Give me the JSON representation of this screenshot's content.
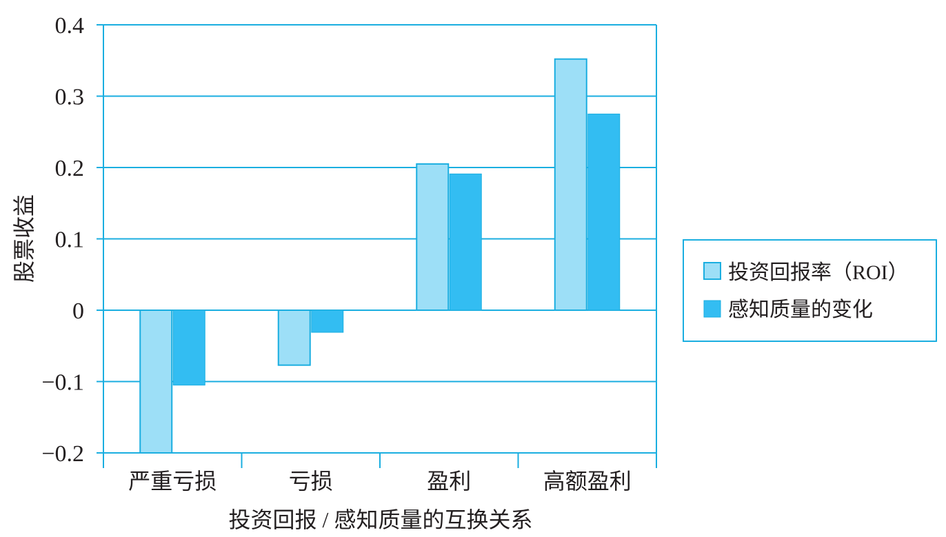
{
  "chart_data": {
    "type": "bar",
    "title": "",
    "xlabel": "投资回报 / 感知质量的互换关系",
    "ylabel": "股票收益",
    "categories": [
      "严重亏损",
      "亏损",
      "盈利",
      "高额盈利"
    ],
    "series": [
      {
        "name": "投资回报率（ROI）",
        "values": [
          -0.2,
          -0.077,
          0.205,
          0.352
        ],
        "color": "#9ddff7"
      },
      {
        "name": "感知质量的变化",
        "values": [
          -0.105,
          -0.031,
          0.191,
          0.275
        ],
        "color": "#33bdf2"
      }
    ],
    "ylim": [
      -0.2,
      0.4
    ],
    "yticks": [
      0.4,
      0.3,
      0.2,
      0.1,
      0,
      -0.1,
      -0.2
    ],
    "ytick_labels": [
      "0.4",
      "0.3",
      "0.2",
      "0.1",
      "0",
      "−0.1",
      "−0.2"
    ],
    "grid": true,
    "legend_position": "right",
    "colors": {
      "axis": "#1aaee0",
      "text": "#231f20"
    }
  }
}
